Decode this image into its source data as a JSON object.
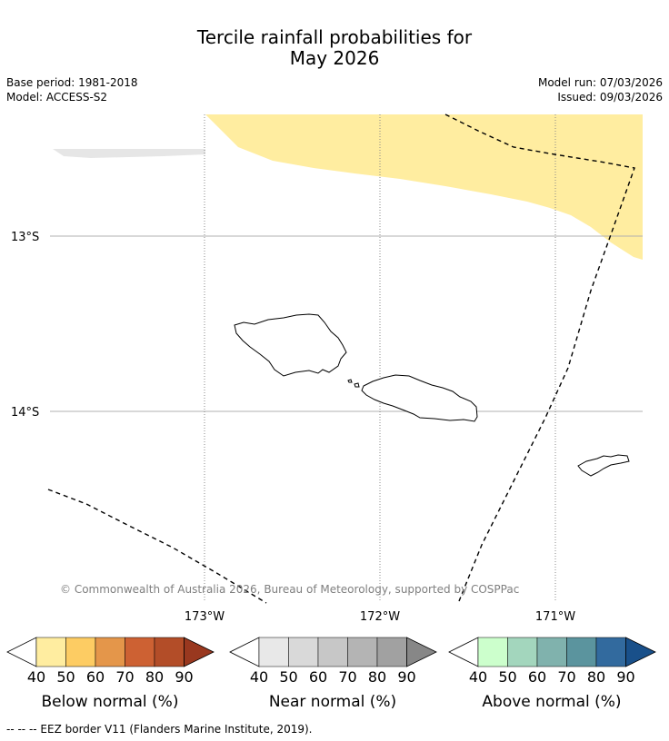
{
  "title_line1": "Tercile rainfall probabilities for",
  "title_line2": "May 2026",
  "base_period": "Base period: 1981-2018",
  "model": "Model: ACCESS-S2",
  "model_run": "Model run: 07/03/2026",
  "issued": "Issued: 09/03/2026",
  "lat_labels": [
    "13°S",
    "14°S"
  ],
  "lon_labels": [
    "173°W",
    "172°W",
    "171°W"
  ],
  "copyright": "© Commonwealth of Australia 2026, Bureau of Meteorology, supported by COSPPac",
  "colorbars": [
    {
      "label": "Below normal (%)",
      "ticks": [
        "40",
        "50",
        "60",
        "70",
        "80",
        "90"
      ],
      "colors": [
        "#ffeda0",
        "#fdcc63",
        "#e4964a",
        "#cd6133",
        "#b34d28",
        "#99381f"
      ]
    },
    {
      "label": "Near normal (%)",
      "ticks": [
        "40",
        "50",
        "60",
        "70",
        "80",
        "90"
      ],
      "colors": [
        "#e8e8e8",
        "#d9d9d9",
        "#c7c7c7",
        "#b4b4b4",
        "#a1a1a1",
        "#878787"
      ]
    },
    {
      "label": "Above normal (%)",
      "ticks": [
        "40",
        "50",
        "60",
        "70",
        "80",
        "90"
      ],
      "colors": [
        "#ccffcc",
        "#a3d6bd",
        "#80b2ad",
        "#5b949e",
        "#326a9e",
        "#19508a"
      ]
    }
  ],
  "footer": "--  --  -- EEZ border V11 (Flanders Marine Institute, 2019).",
  "colors": {
    "below_40_50": "#ffeda0",
    "near_40_50": "#e6e6e6",
    "gridline": "#b0b0b0",
    "eez": "#000000"
  }
}
